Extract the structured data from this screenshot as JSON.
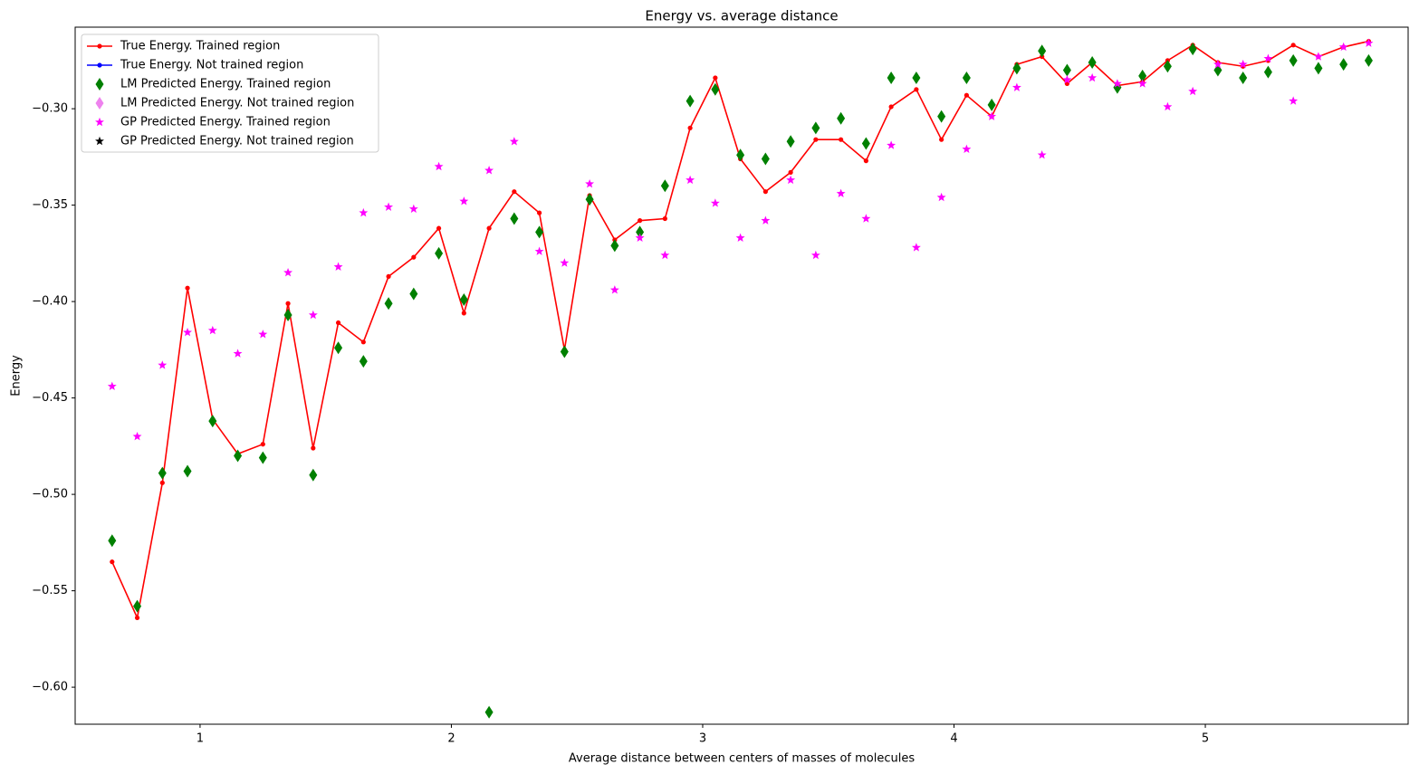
{
  "chart_data": {
    "type": "line",
    "title": "Energy vs. average distance",
    "x_label": "Average distance between centers of masses of molecules",
    "y_label": "Energy",
    "xlim": [
      0.503,
      5.807
    ],
    "ylim": [
      -0.6192,
      -0.2577
    ],
    "xticks": [
      1,
      2,
      3,
      4,
      5
    ],
    "yticks": [
      {
        "value": -0.3,
        "label": "−0.30"
      },
      {
        "value": -0.35,
        "label": "−0.35"
      },
      {
        "value": -0.4,
        "label": "−0.40"
      },
      {
        "value": -0.45,
        "label": "−0.45"
      },
      {
        "value": -0.5,
        "label": "−0.50"
      },
      {
        "value": -0.55,
        "label": "−0.55"
      },
      {
        "value": -0.6,
        "label": "−0.60"
      }
    ],
    "legend": "upper left",
    "series": [
      {
        "name": "True Energy. Trained region",
        "color": "#ff0000",
        "style": "line",
        "marker": "dot",
        "x": [
          0.65,
          0.75,
          0.85,
          0.95,
          1.05,
          1.15,
          1.25,
          1.35,
          1.45,
          1.55,
          1.65,
          1.75,
          1.85,
          1.95,
          2.05,
          2.15,
          2.25,
          2.35,
          2.45,
          2.55,
          2.65,
          2.75,
          2.85,
          2.95,
          3.05,
          3.15,
          3.25,
          3.35,
          3.45,
          3.55,
          3.65,
          3.75,
          3.85,
          3.95,
          4.05,
          4.15,
          4.25,
          4.35,
          4.45,
          4.55,
          4.65,
          4.75,
          4.85,
          4.95,
          5.05,
          5.15,
          5.25,
          5.35,
          5.45,
          5.55,
          5.65
        ],
        "values": [
          -0.535,
          -0.564,
          -0.494,
          -0.393,
          -0.461,
          -0.479,
          -0.474,
          -0.401,
          -0.476,
          -0.411,
          -0.421,
          -0.387,
          -0.377,
          -0.362,
          -0.406,
          -0.362,
          -0.343,
          -0.354,
          -0.425,
          -0.345,
          -0.368,
          -0.358,
          -0.357,
          -0.31,
          -0.284,
          -0.326,
          -0.343,
          -0.333,
          -0.316,
          -0.316,
          -0.327,
          -0.299,
          -0.29,
          -0.316,
          -0.293,
          -0.304,
          -0.277,
          -0.273,
          -0.287,
          -0.276,
          -0.288,
          -0.286,
          -0.275,
          -0.267,
          -0.276,
          -0.278,
          -0.275,
          -0.267,
          -0.273,
          -0.268,
          -0.265
        ]
      },
      {
        "name": "True Energy. Not trained region",
        "color": "#0000ff",
        "style": "line",
        "marker": "dot",
        "x": [],
        "values": []
      },
      {
        "name": "LM Predicted Energy. Trained region",
        "color": "#008000",
        "style": "scatter",
        "marker": "diamond",
        "x": [
          0.65,
          0.75,
          0.85,
          0.95,
          1.05,
          1.15,
          1.25,
          1.35,
          1.45,
          1.55,
          1.65,
          1.75,
          1.85,
          1.95,
          2.05,
          2.15,
          2.25,
          2.35,
          2.45,
          2.55,
          2.65,
          2.75,
          2.85,
          2.95,
          3.05,
          3.15,
          3.25,
          3.35,
          3.45,
          3.55,
          3.65,
          3.75,
          3.85,
          3.95,
          4.05,
          4.15,
          4.25,
          4.35,
          4.45,
          4.55,
          4.65,
          4.75,
          4.85,
          4.95,
          5.05,
          5.15,
          5.25,
          5.35,
          5.45,
          5.55,
          5.65
        ],
        "values": [
          -0.524,
          -0.558,
          -0.489,
          -0.488,
          -0.462,
          -0.48,
          -0.481,
          -0.407,
          -0.49,
          -0.424,
          -0.431,
          -0.401,
          -0.396,
          -0.375,
          -0.399,
          -0.613,
          -0.357,
          -0.364,
          -0.426,
          -0.347,
          -0.371,
          -0.364,
          -0.34,
          -0.296,
          -0.29,
          -0.324,
          -0.326,
          -0.317,
          -0.31,
          -0.305,
          -0.318,
          -0.284,
          -0.284,
          -0.304,
          -0.284,
          -0.298,
          -0.279,
          -0.27,
          -0.28,
          -0.276,
          -0.289,
          -0.283,
          -0.278,
          -0.269,
          -0.28,
          -0.284,
          -0.281,
          -0.275,
          -0.279,
          -0.277,
          -0.275
        ]
      },
      {
        "name": "LM Predicted Energy. Not trained region",
        "color": "#ee82ee",
        "style": "scatter",
        "marker": "diamond",
        "x": [],
        "values": []
      },
      {
        "name": "GP Predicted Energy. Trained region",
        "color": "#ff00ff",
        "style": "scatter",
        "marker": "star",
        "x": [
          0.65,
          0.75,
          0.85,
          0.95,
          1.05,
          1.15,
          1.25,
          1.35,
          1.45,
          1.55,
          1.65,
          1.75,
          1.85,
          1.95,
          2.05,
          2.15,
          2.25,
          2.35,
          2.45,
          2.55,
          2.65,
          2.75,
          2.85,
          2.95,
          3.05,
          3.15,
          3.25,
          3.35,
          3.45,
          3.55,
          3.65,
          3.75,
          3.85,
          3.95,
          4.05,
          4.15,
          4.25,
          4.35,
          4.45,
          4.55,
          4.65,
          4.75,
          4.85,
          4.95,
          5.05,
          5.15,
          5.25,
          5.35,
          5.45,
          5.55,
          5.65
        ],
        "values": [
          -0.444,
          -0.47,
          -0.433,
          -0.416,
          -0.415,
          -0.427,
          -0.417,
          -0.385,
          -0.407,
          -0.382,
          -0.354,
          -0.351,
          -0.352,
          -0.33,
          -0.348,
          -0.332,
          -0.317,
          -0.374,
          -0.38,
          -0.339,
          -0.394,
          -0.367,
          -0.376,
          -0.337,
          -0.349,
          -0.367,
          -0.358,
          -0.337,
          -0.376,
          -0.344,
          -0.357,
          -0.319,
          -0.372,
          -0.346,
          -0.321,
          -0.304,
          -0.289,
          -0.324,
          -0.285,
          -0.284,
          -0.287,
          -0.287,
          -0.299,
          -0.291,
          -0.277,
          -0.277,
          -0.274,
          -0.296,
          -0.273,
          -0.268,
          -0.266
        ]
      },
      {
        "name": "GP Predicted Energy. Not trained region",
        "color": "#000000",
        "style": "scatter",
        "marker": "star",
        "x": [],
        "values": []
      }
    ]
  }
}
